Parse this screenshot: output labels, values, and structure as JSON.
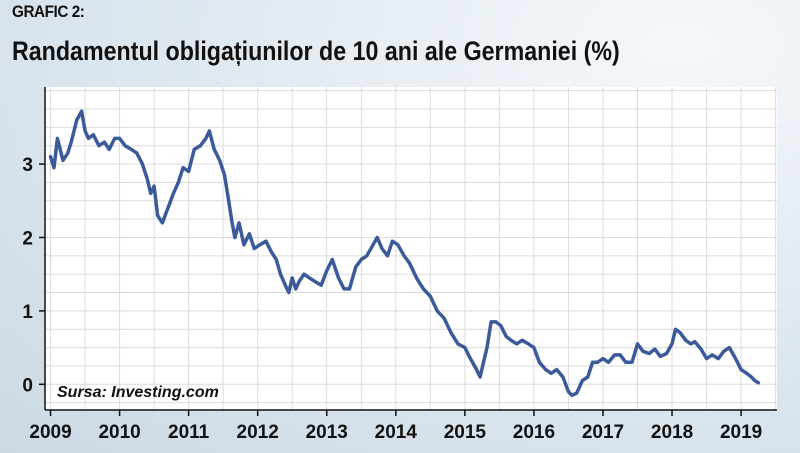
{
  "header": {
    "label": "GRAFIC 2:",
    "title": "Randamentul obligațiunilor de 10 ani ale Germaniei (%)"
  },
  "source": "Sursa: Investing.com",
  "colors": {
    "line": "#3a5a9a",
    "grid": "#dcdcdc",
    "plot_bg": "#ffffff",
    "axis": "#111111"
  },
  "chart_data": {
    "type": "line",
    "title": "Randamentul obligațiunilor de 10 ani ale Germaniei (%)",
    "xlabel": "",
    "ylabel": "",
    "xlim": [
      2008.92,
      2019.52
    ],
    "ylim": [
      -0.35,
      4.05
    ],
    "grid": true,
    "x_ticks": [
      2009,
      2010,
      2011,
      2012,
      2013,
      2014,
      2015,
      2016,
      2017,
      2018,
      2019
    ],
    "y_ticks": [
      0,
      1,
      2,
      3
    ],
    "series": [
      {
        "x": [
          2009.0,
          2009.05,
          2009.1,
          2009.18,
          2009.25,
          2009.3,
          2009.38,
          2009.45,
          2009.5,
          2009.55,
          2009.62,
          2009.7,
          2009.78,
          2009.85,
          2009.93,
          2010.0,
          2010.08,
          2010.17,
          2010.25,
          2010.33,
          2010.4,
          2010.45,
          2010.5,
          2010.55,
          2010.62,
          2010.68,
          2010.72,
          2010.78,
          2010.85,
          2010.92,
          2011.0,
          2011.08,
          2011.17,
          2011.25,
          2011.3,
          2011.37,
          2011.45,
          2011.52,
          2011.58,
          2011.63,
          2011.67,
          2011.73,
          2011.8,
          2011.88,
          2011.95,
          2012.03,
          2012.12,
          2012.2,
          2012.27,
          2012.33,
          2012.4,
          2012.45,
          2012.5,
          2012.55,
          2012.6,
          2012.67,
          2012.75,
          2012.83,
          2012.92,
          2013.0,
          2013.08,
          2013.17,
          2013.25,
          2013.33,
          2013.42,
          2013.5,
          2013.58,
          2013.67,
          2013.73,
          2013.8,
          2013.88,
          2013.95,
          2014.03,
          2014.12,
          2014.2,
          2014.3,
          2014.4,
          2014.5,
          2014.6,
          2014.7,
          2014.8,
          2014.9,
          2015.0,
          2015.08,
          2015.17,
          2015.22,
          2015.27,
          2015.32,
          2015.38,
          2015.45,
          2015.52,
          2015.6,
          2015.67,
          2015.75,
          2015.83,
          2015.92,
          2016.0,
          2016.08,
          2016.17,
          2016.25,
          2016.33,
          2016.42,
          2016.5,
          2016.55,
          2016.62,
          2016.7,
          2016.78,
          2016.85,
          2016.92,
          2017.0,
          2017.08,
          2017.17,
          2017.25,
          2017.33,
          2017.42,
          2017.5,
          2017.58,
          2017.67,
          2017.75,
          2017.83,
          2017.92,
          2018.0,
          2018.05,
          2018.12,
          2018.2,
          2018.27,
          2018.33,
          2018.42,
          2018.5,
          2018.58,
          2018.67,
          2018.75,
          2018.83,
          2018.92,
          2019.0,
          2019.08,
          2019.15,
          2019.2,
          2019.25
        ],
        "values": [
          3.1,
          2.95,
          3.35,
          3.05,
          3.15,
          3.3,
          3.6,
          3.72,
          3.45,
          3.35,
          3.4,
          3.25,
          3.3,
          3.2,
          3.35,
          3.35,
          3.25,
          3.2,
          3.15,
          3.0,
          2.8,
          2.6,
          2.7,
          2.3,
          2.2,
          2.35,
          2.45,
          2.6,
          2.75,
          2.95,
          2.9,
          3.2,
          3.25,
          3.35,
          3.45,
          3.2,
          3.05,
          2.85,
          2.5,
          2.2,
          2.0,
          2.2,
          1.9,
          2.05,
          1.85,
          1.9,
          1.95,
          1.8,
          1.7,
          1.5,
          1.35,
          1.25,
          1.45,
          1.3,
          1.4,
          1.5,
          1.45,
          1.4,
          1.35,
          1.55,
          1.7,
          1.45,
          1.3,
          1.3,
          1.6,
          1.7,
          1.75,
          1.9,
          2.0,
          1.85,
          1.75,
          1.95,
          1.9,
          1.75,
          1.65,
          1.45,
          1.3,
          1.2,
          1.0,
          0.9,
          0.7,
          0.55,
          0.5,
          0.35,
          0.2,
          0.1,
          0.3,
          0.5,
          0.85,
          0.85,
          0.8,
          0.65,
          0.6,
          0.55,
          0.6,
          0.55,
          0.5,
          0.3,
          0.2,
          0.15,
          0.2,
          0.1,
          -0.1,
          -0.15,
          -0.12,
          0.05,
          0.1,
          0.3,
          0.3,
          0.35,
          0.3,
          0.4,
          0.4,
          0.3,
          0.3,
          0.55,
          0.45,
          0.42,
          0.48,
          0.38,
          0.42,
          0.55,
          0.75,
          0.7,
          0.6,
          0.55,
          0.58,
          0.48,
          0.35,
          0.4,
          0.35,
          0.45,
          0.5,
          0.35,
          0.2,
          0.15,
          0.1,
          0.05,
          0.02
        ]
      }
    ]
  }
}
